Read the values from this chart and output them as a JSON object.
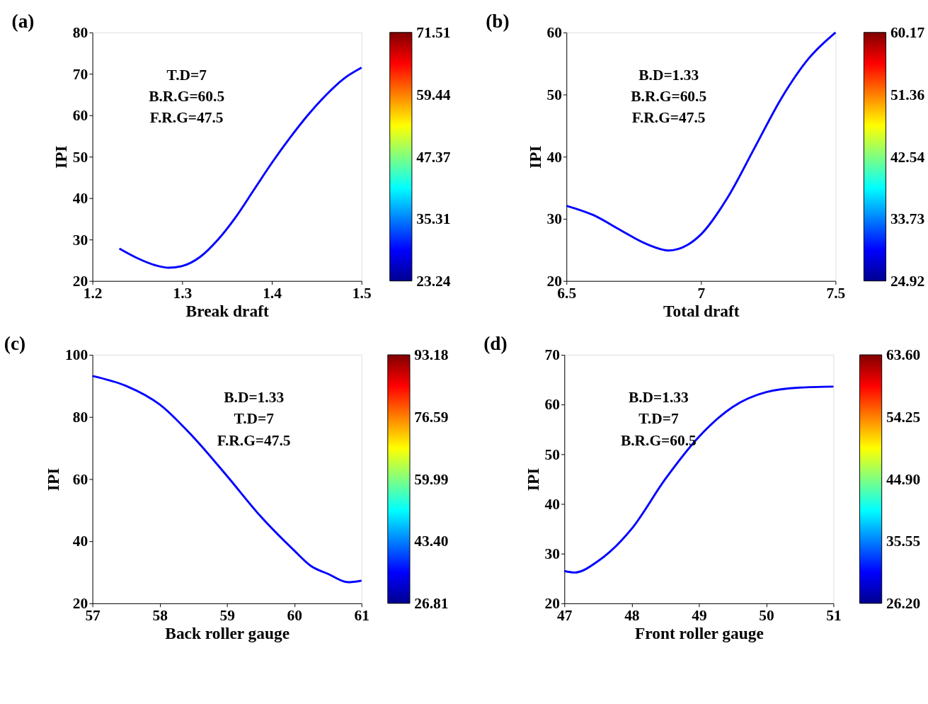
{
  "chart_data": [
    {
      "type": "line",
      "title": "(a)",
      "xlabel": "Break draft",
      "ylabel": "IPI",
      "annotations": [
        "T.D=7",
        "B.R.G=60.5",
        "F.R.G=47.5"
      ],
      "x": [
        1.23,
        1.25,
        1.27,
        1.285,
        1.3,
        1.32,
        1.34,
        1.36,
        1.38,
        1.4,
        1.42,
        1.44,
        1.46,
        1.48,
        1.5
      ],
      "series": [
        {
          "color": "#0000ff",
          "values": [
            27.8,
            25.5,
            23.8,
            23.2,
            23.6,
            25.8,
            30,
            35.5,
            42,
            48.5,
            54.5,
            60,
            64.8,
            68.8,
            71.5
          ]
        }
      ],
      "xlim": [
        1.2,
        1.5
      ],
      "xticks": [
        1.2,
        1.3,
        1.4,
        1.5
      ],
      "ylim": [
        20,
        80
      ],
      "yticks": [
        20,
        30,
        40,
        50,
        60,
        70,
        80
      ],
      "grid": false,
      "clim": [
        23.24,
        71.51
      ],
      "cticks": [
        23.24,
        35.31,
        47.37,
        59.44,
        71.51
      ]
    },
    {
      "type": "line",
      "title": "(b)",
      "xlabel": "Total draft",
      "ylabel": "IPI",
      "annotations": [
        "B.D=1.33",
        "B.R.G=60.5",
        "F.R.G=47.5"
      ],
      "x": [
        6.5,
        6.6,
        6.7,
        6.8,
        6.88,
        6.95,
        7.0,
        7.1,
        7.2,
        7.3,
        7.4,
        7.5
      ],
      "series": [
        {
          "color": "#0000ff",
          "values": [
            32.1,
            30.6,
            28.2,
            25.9,
            24.9,
            25.8,
            27.5,
            33.5,
            41.5,
            49.5,
            55.8,
            60
          ]
        }
      ],
      "xlim": [
        6.5,
        7.5
      ],
      "xticks": [
        6.5,
        7,
        7.5
      ],
      "ylim": [
        20,
        60
      ],
      "yticks": [
        20,
        30,
        40,
        50,
        60
      ],
      "grid": false,
      "clim": [
        24.92,
        60.17
      ],
      "cticks": [
        24.92,
        33.73,
        42.54,
        51.36,
        60.17
      ]
    },
    {
      "type": "line",
      "title": "(c)",
      "xlabel": "Back roller gauge",
      "ylabel": "IPI",
      "annotations": [
        "B.D=1.33",
        "T.D=7",
        "F.R.G=47.5"
      ],
      "x": [
        57,
        57.5,
        58,
        58.5,
        59,
        59.5,
        60,
        60.25,
        60.5,
        60.8,
        61
      ],
      "series": [
        {
          "color": "#0000ff",
          "values": [
            93.2,
            90,
            84,
            73.5,
            61,
            48,
            37,
            32,
            29.5,
            26.8,
            27.3
          ]
        }
      ],
      "xlim": [
        57,
        61
      ],
      "xticks": [
        57,
        58,
        59,
        60,
        61
      ],
      "ylim": [
        20,
        100
      ],
      "yticks": [
        20,
        40,
        60,
        80,
        100
      ],
      "grid": false,
      "clim": [
        26.81,
        93.18
      ],
      "cticks": [
        26.81,
        {
          "value": 43.4,
          "label": "43.40"
        },
        59.99,
        76.59,
        93.18
      ]
    },
    {
      "type": "line",
      "title": "(d)",
      "xlabel": "Front roller gauge",
      "ylabel": "IPI",
      "annotations": [
        "B.D=1.33",
        "T.D=7",
        "B.R.G=60.5"
      ],
      "x": [
        47,
        47.15,
        47.5,
        48,
        48.5,
        49,
        49.5,
        50,
        50.5,
        51
      ],
      "series": [
        {
          "color": "#0000ff",
          "values": [
            26.5,
            26.2,
            28.5,
            35,
            45,
            53.5,
            59.5,
            62.5,
            63.4,
            63.6
          ]
        }
      ],
      "xlim": [
        47,
        51
      ],
      "xticks": [
        47,
        48,
        49,
        50,
        51
      ],
      "ylim": [
        20,
        70
      ],
      "yticks": [
        20,
        30,
        40,
        50,
        60,
        70
      ],
      "grid": false,
      "clim": [
        26.2,
        63.6
      ],
      "cticks": [
        {
          "value": 26.2,
          "label": "26.20"
        },
        35.55,
        {
          "value": 44.9,
          "label": "44.90"
        },
        54.25,
        {
          "value": 63.6,
          "label": "63.60"
        }
      ]
    }
  ]
}
